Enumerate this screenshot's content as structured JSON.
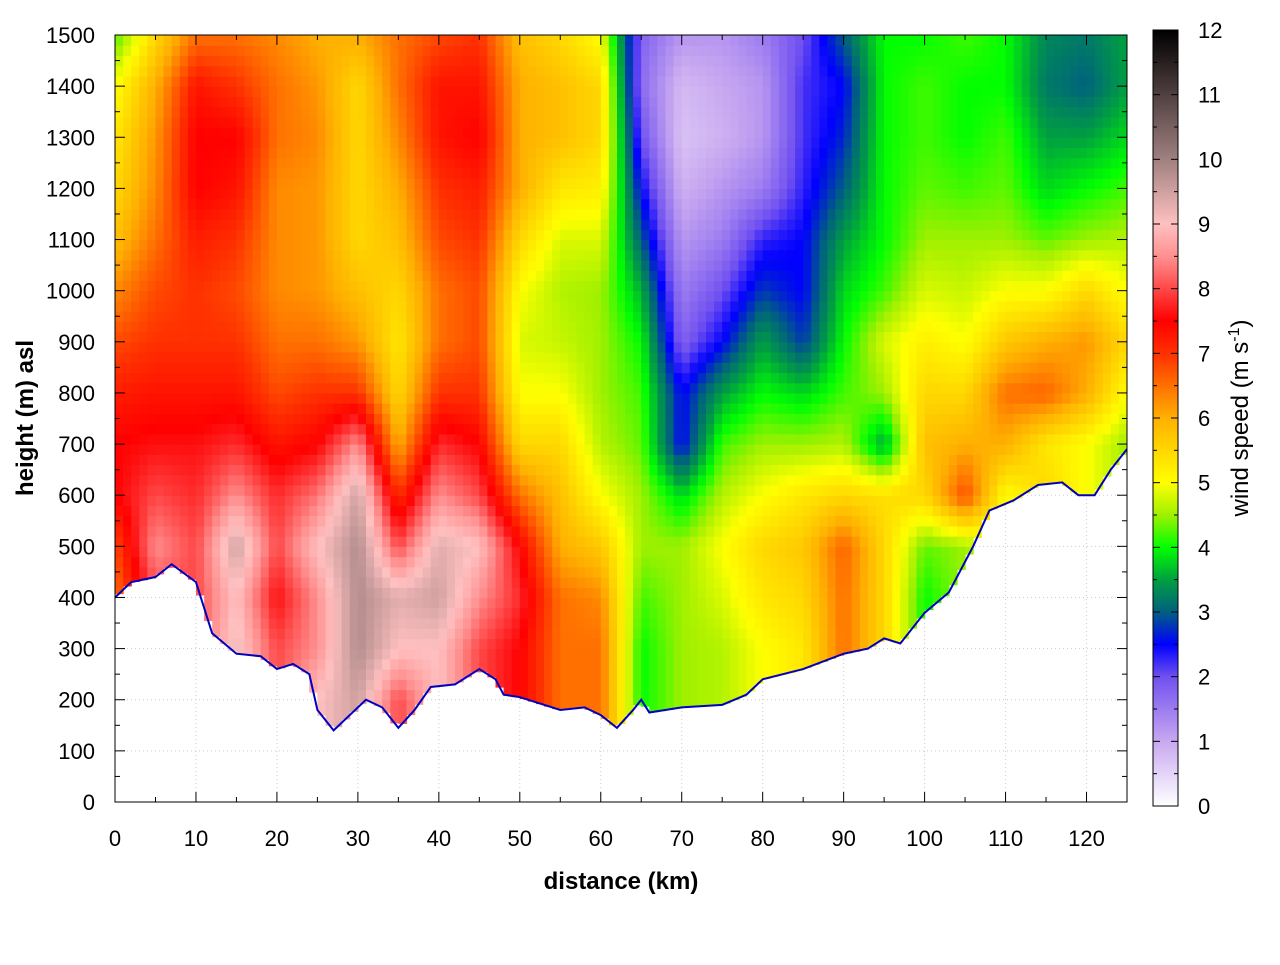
{
  "chart_data": {
    "type": "heatmap",
    "xlabel": "distance (km)",
    "ylabel": "height (m) asl",
    "xlim": [
      0,
      125
    ],
    "ylim": [
      0,
      1500
    ],
    "xticks": [
      "0",
      "10",
      "20",
      "30",
      "40",
      "50",
      "60",
      "70",
      "80",
      "90",
      "100",
      "110",
      "120"
    ],
    "yticks": [
      "0",
      "100",
      "200",
      "300",
      "400",
      "500",
      "600",
      "700",
      "800",
      "900",
      "1000",
      "1100",
      "1200",
      "1300",
      "1400",
      "1500"
    ],
    "grid": true,
    "colorbar": {
      "label": "wind speed (m s",
      "label_sup": "-1",
      "label_end": ")",
      "range": [
        0,
        12
      ],
      "ticks": [
        "0",
        "1",
        "2",
        "3",
        "4",
        "5",
        "6",
        "7",
        "8",
        "9",
        "10",
        "11",
        "12"
      ],
      "stops": [
        [
          0,
          "#ffffff"
        ],
        [
          1,
          "#c8a8f0"
        ],
        [
          2,
          "#7050f0"
        ],
        [
          2.5,
          "#0000ff"
        ],
        [
          3,
          "#006080"
        ],
        [
          3.5,
          "#00a040"
        ],
        [
          4,
          "#00ff00"
        ],
        [
          4.5,
          "#a0f000"
        ],
        [
          5,
          "#ffff00"
        ],
        [
          6,
          "#ffb000"
        ],
        [
          6.5,
          "#ff7000"
        ],
        [
          7,
          "#ff3000"
        ],
        [
          7.5,
          "#ff0000"
        ],
        [
          8,
          "#ff4848"
        ],
        [
          8.5,
          "#ff9090"
        ],
        [
          9,
          "#ffc0c0"
        ],
        [
          10,
          "#a08080"
        ],
        [
          11,
          "#504040"
        ],
        [
          12,
          "#000000"
        ]
      ]
    },
    "grid_x_km": [
      0,
      5,
      10,
      15,
      20,
      25,
      30,
      35,
      40,
      45,
      50,
      55,
      60,
      65,
      70,
      75,
      80,
      85,
      90,
      95,
      100,
      105,
      110,
      115,
      120,
      125
    ],
    "grid_y_m": [
      100,
      200,
      300,
      400,
      500,
      600,
      700,
      800,
      900,
      1000,
      1100,
      1200,
      1300,
      1400,
      1500
    ],
    "wind_speed": [
      [
        6.5,
        6.5,
        6.5,
        6.5,
        6.8,
        7.5,
        7.5,
        7.2,
        6.8,
        6.3,
        5.8,
        5.5,
        5.3,
        5,
        4.2
      ],
      [
        8,
        8,
        8,
        8,
        8.5,
        8,
        7.6,
        7.3,
        7,
        6.8,
        6.5,
        6.3,
        6.2,
        6,
        5.5
      ],
      [
        8,
        8,
        8,
        8,
        8,
        7.8,
        7.6,
        7.3,
        7,
        7,
        7.2,
        7.5,
        7.5,
        7.3,
        6.5
      ],
      [
        9.2,
        9.2,
        9.2,
        9,
        9.5,
        8.5,
        7.8,
        7.3,
        7,
        6.8,
        7,
        7.3,
        7.5,
        7,
        6.5
      ],
      [
        8,
        8,
        8,
        7.6,
        8,
        7.8,
        7.3,
        6.8,
        6.5,
        6.3,
        6.3,
        6.3,
        6.5,
        6.5,
        6.3
      ],
      [
        9,
        9,
        8.5,
        8.5,
        9,
        8.3,
        7.5,
        7,
        6.5,
        6.2,
        6.2,
        6.2,
        6.3,
        6.2,
        6
      ],
      [
        9.5,
        9.5,
        9.8,
        9.8,
        9.8,
        9.5,
        8.5,
        7,
        6.2,
        5.8,
        5.5,
        5.5,
        5.5,
        5.5,
        6
      ],
      [
        8,
        8,
        9,
        9.3,
        8,
        7,
        6,
        5.5,
        5.3,
        5.5,
        5.8,
        6,
        6.3,
        6.5,
        6.5
      ],
      [
        9,
        9,
        9,
        9.5,
        9.3,
        8.5,
        7.8,
        7,
        6.5,
        6.5,
        6.8,
        7,
        7.3,
        7.3,
        6.8
      ],
      [
        8,
        8,
        8,
        8.5,
        9,
        8,
        7.5,
        7,
        6.8,
        6.8,
        7,
        7.2,
        7.5,
        7.3,
        7
      ],
      [
        7.5,
        7.5,
        7.5,
        7.8,
        7.5,
        6.5,
        5.5,
        5,
        4.8,
        5,
        5.5,
        6,
        6,
        6,
        5.8
      ],
      [
        6.5,
        6.5,
        6.5,
        6.5,
        6,
        5.8,
        5.5,
        5,
        4.7,
        4.6,
        4.8,
        5.3,
        5.8,
        5.8,
        5.5
      ],
      [
        6.5,
        6.5,
        6.5,
        6.3,
        5.7,
        5,
        4.6,
        4.5,
        4.5,
        4.5,
        4.8,
        5.2,
        5.5,
        5.5,
        5
      ],
      [
        4,
        4,
        4,
        4.2,
        4.5,
        4.5,
        4.3,
        4.2,
        4,
        3.6,
        3,
        2.5,
        2,
        1.7,
        1.8
      ],
      [
        4.5,
        4.5,
        4.5,
        4.5,
        4.5,
        3.8,
        2.5,
        2.5,
        1.8,
        1.5,
        1.2,
        0.9,
        0.7,
        0.8,
        1.2
      ],
      [
        4.6,
        4.6,
        4.6,
        4.8,
        5,
        4.6,
        4.2,
        3.5,
        2.5,
        2,
        1.5,
        1.2,
        0.9,
        1,
        1.2
      ],
      [
        5,
        5,
        5,
        5.3,
        5.5,
        5,
        4.5,
        4,
        3.5,
        2.8,
        2.3,
        1.5,
        1.2,
        1.2,
        1.5
      ],
      [
        5.3,
        5.3,
        5.3,
        5.5,
        5.7,
        5.3,
        4.5,
        3.8,
        2.8,
        2.5,
        2.5,
        2.3,
        2.2,
        2.2,
        2
      ],
      [
        6.5,
        6.5,
        6.5,
        6.5,
        6.6,
        5.5,
        4.6,
        4.2,
        4,
        3.8,
        3.5,
        3,
        2.7,
        2.5,
        3
      ],
      [
        5.5,
        5.5,
        5.5,
        5.5,
        5.5,
        5.4,
        3.5,
        4.5,
        4.8,
        4.2,
        4,
        4,
        4,
        4,
        4
      ],
      [
        4,
        4,
        4,
        4,
        4.3,
        5.5,
        5.8,
        5.5,
        5.2,
        4.8,
        4.5,
        4.3,
        4.2,
        4.2,
        4
      ],
      [
        4.5,
        4.5,
        4.5,
        4.5,
        4.5,
        6.8,
        6,
        5.5,
        5,
        4.7,
        4.5,
        4.2,
        4,
        4,
        4.2
      ],
      [
        5,
        5,
        5,
        5,
        5,
        5,
        6,
        6.5,
        5.7,
        5,
        4.5,
        4.3,
        4.2,
        4,
        4
      ],
      [
        5.5,
        5.5,
        5.5,
        5.5,
        5.5,
        5.5,
        5.3,
        6.6,
        6,
        5,
        4.3,
        3.8,
        3.5,
        3.2,
        3.3
      ],
      [
        5,
        5,
        5,
        5,
        5,
        5,
        5,
        6,
        6.2,
        5.5,
        4.5,
        4,
        3.5,
        3,
        3.2
      ],
      [
        4.5,
        4.5,
        4.5,
        4.5,
        4.5,
        4.5,
        4.5,
        5,
        5.5,
        5,
        4.6,
        4.2,
        3.8,
        3.5,
        3.5
      ]
    ],
    "terrain": [
      [
        0,
        400
      ],
      [
        2,
        430
      ],
      [
        5,
        440
      ],
      [
        7,
        465
      ],
      [
        10,
        430
      ],
      [
        12,
        330
      ],
      [
        15,
        290
      ],
      [
        18,
        285
      ],
      [
        20,
        260
      ],
      [
        22,
        270
      ],
      [
        24,
        250
      ],
      [
        25,
        180
      ],
      [
        27,
        140
      ],
      [
        29,
        170
      ],
      [
        31,
        200
      ],
      [
        33,
        185
      ],
      [
        35,
        145
      ],
      [
        37,
        180
      ],
      [
        39,
        225
      ],
      [
        42,
        230
      ],
      [
        45,
        260
      ],
      [
        47,
        240
      ],
      [
        48,
        210
      ],
      [
        50,
        205
      ],
      [
        53,
        190
      ],
      [
        55,
        180
      ],
      [
        58,
        185
      ],
      [
        60,
        170
      ],
      [
        62,
        145
      ],
      [
        64,
        180
      ],
      [
        65,
        200
      ],
      [
        66,
        175
      ],
      [
        70,
        185
      ],
      [
        75,
        190
      ],
      [
        78,
        210
      ],
      [
        80,
        240
      ],
      [
        85,
        260
      ],
      [
        90,
        290
      ],
      [
        93,
        300
      ],
      [
        95,
        320
      ],
      [
        97,
        310
      ],
      [
        100,
        370
      ],
      [
        103,
        410
      ],
      [
        106,
        500
      ],
      [
        108,
        570
      ],
      [
        111,
        590
      ],
      [
        114,
        620
      ],
      [
        117,
        625
      ],
      [
        119,
        600
      ],
      [
        121,
        600
      ],
      [
        123,
        650
      ],
      [
        125,
        690
      ]
    ]
  }
}
